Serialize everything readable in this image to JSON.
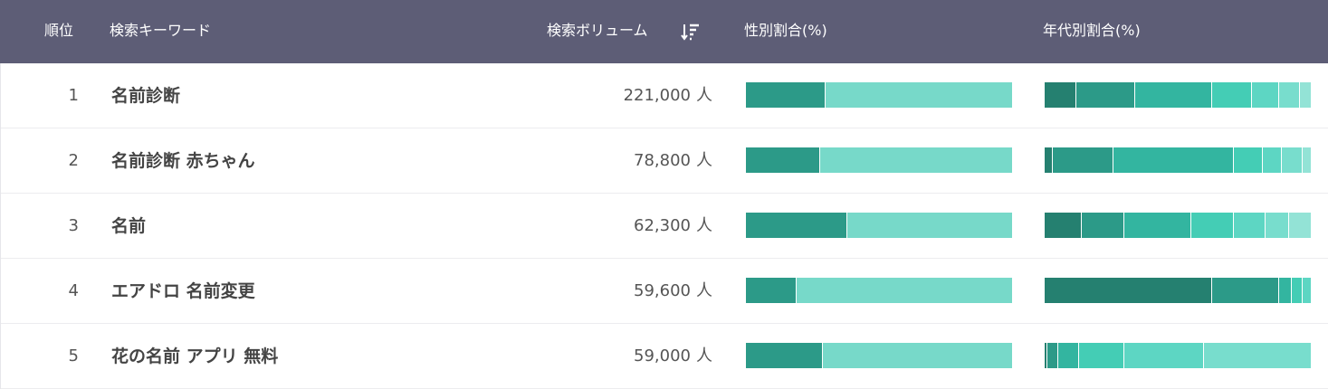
{
  "header": {
    "rank": "順位",
    "keyword": "検索キーワード",
    "volume": "検索ボリューム",
    "sort_icon": "sort-descending-icon",
    "gender": "性別割合(%)",
    "age": "年代別割合(%)"
  },
  "colors": {
    "header_bg": "#5d5d76",
    "gender": [
      "#2c9a88",
      "#77d9c9"
    ],
    "age": [
      "#258070",
      "#2c9a88",
      "#33b5a0",
      "#44cdb5",
      "#5dd6c3",
      "#78ddcd",
      "#93e3d6"
    ]
  },
  "rows": [
    {
      "rank": "1",
      "keyword": "名前診断",
      "volume": "221,000",
      "unit": "人",
      "gender": [
        30,
        70
      ],
      "age": [
        12,
        22,
        29,
        15,
        10,
        8,
        4
      ]
    },
    {
      "rank": "2",
      "keyword": "名前診断 赤ちゃん",
      "volume": "78,800",
      "unit": "人",
      "gender": [
        28,
        72
      ],
      "age": [
        3,
        23,
        45,
        11,
        7,
        8,
        3
      ]
    },
    {
      "rank": "3",
      "keyword": "名前",
      "volume": "62,300",
      "unit": "人",
      "gender": [
        38,
        62
      ],
      "age": [
        14,
        16,
        25,
        16,
        12,
        9,
        8
      ]
    },
    {
      "rank": "4",
      "keyword": "エアドロ 名前変更",
      "volume": "59,600",
      "unit": "人",
      "gender": [
        19,
        81
      ],
      "age": [
        63,
        25,
        5,
        4,
        3
      ]
    },
    {
      "rank": "5",
      "keyword": "花の名前 アプリ 無料",
      "volume": "59,000",
      "unit": "人",
      "gender": [
        29,
        71
      ],
      "age": [
        1,
        4,
        8,
        17,
        30,
        40
      ]
    }
  ]
}
